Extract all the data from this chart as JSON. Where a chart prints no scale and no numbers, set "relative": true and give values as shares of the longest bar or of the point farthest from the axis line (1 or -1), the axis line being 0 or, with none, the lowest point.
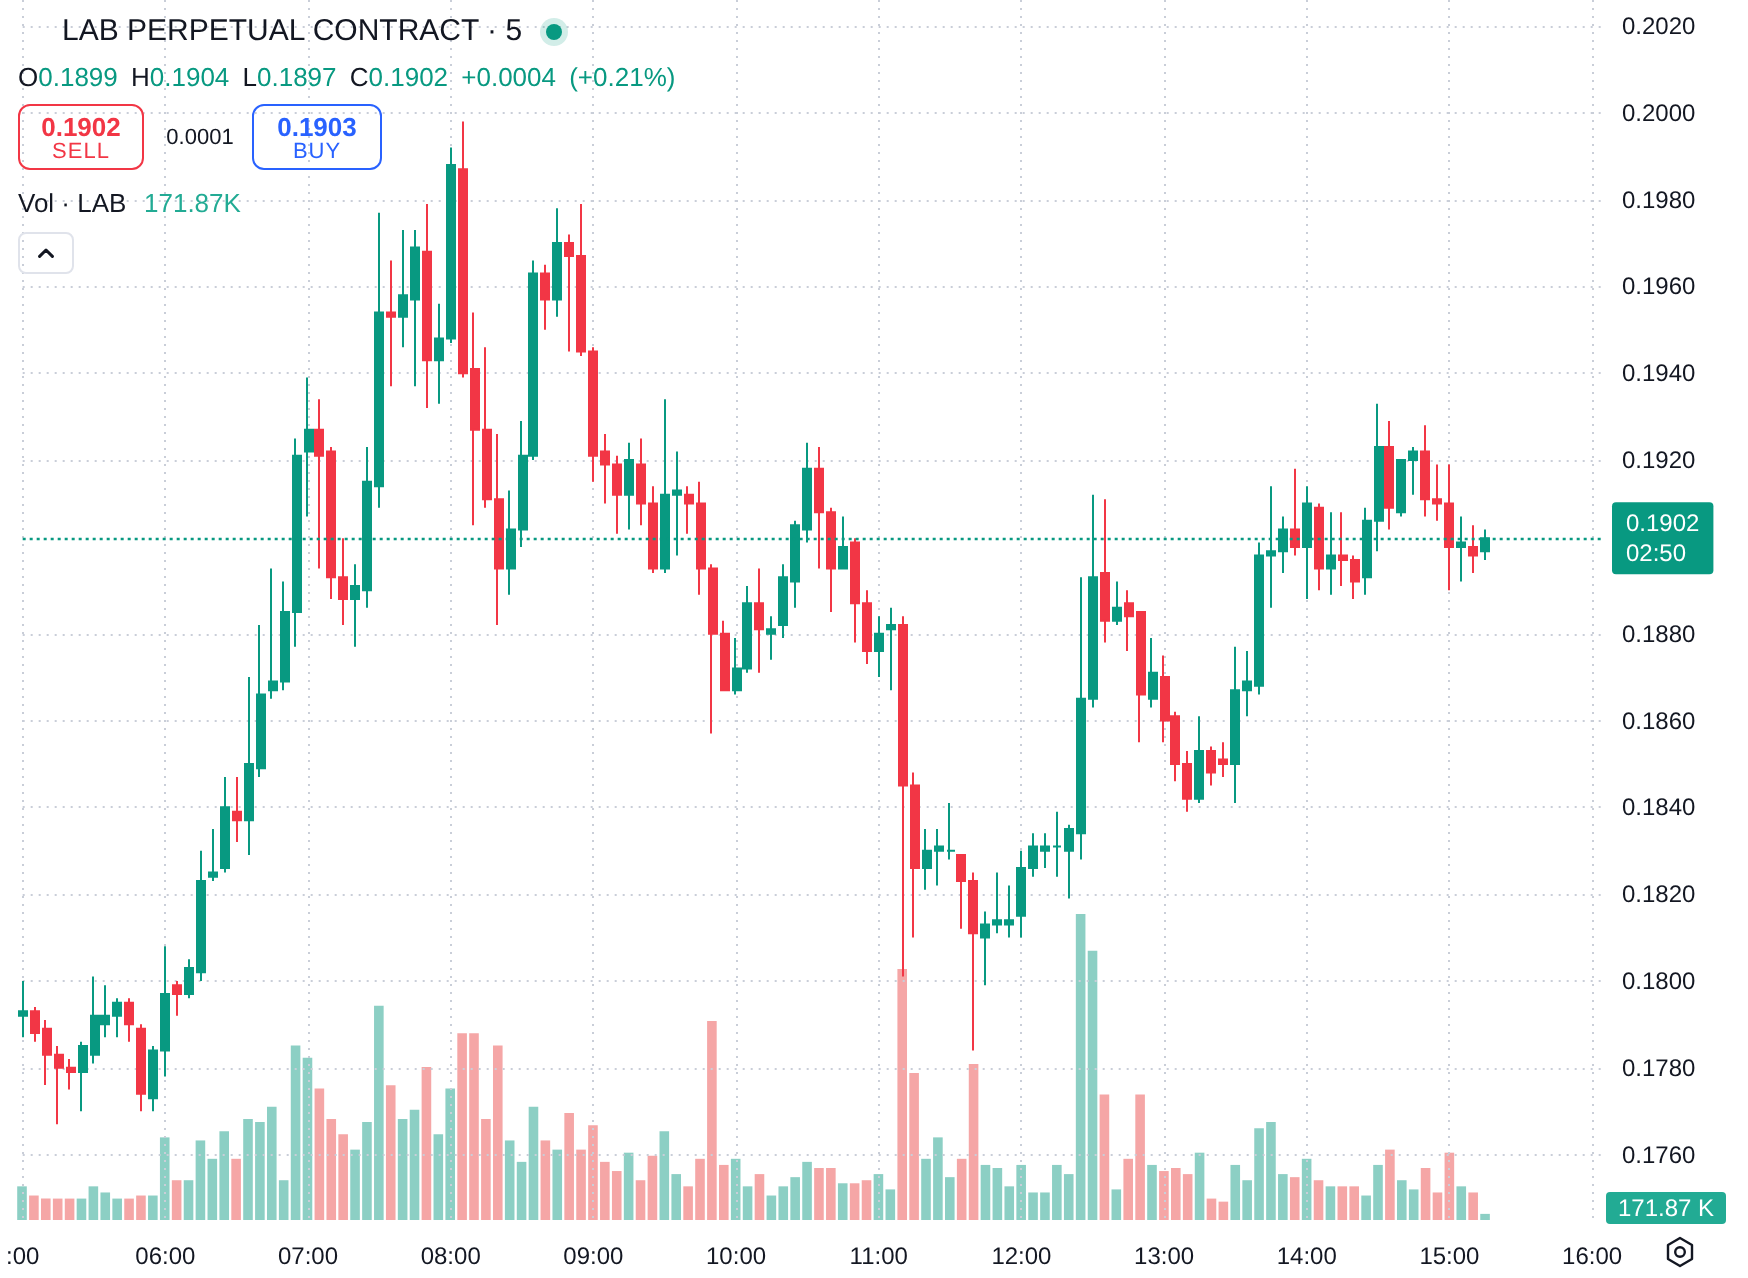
{
  "chart_data": [
    {
      "type": "candlestick",
      "title": "LAB PERPETUAL CONTRACT · 5",
      "categories": [
        ":00",
        null,
        null,
        null,
        null,
        null,
        null,
        null,
        null,
        null,
        null,
        null,
        "06:00",
        null,
        null,
        null,
        null,
        null,
        null,
        null,
        null,
        null,
        null,
        null,
        "07:00",
        null,
        null,
        null,
        null,
        null,
        null,
        null,
        null,
        null,
        null,
        null,
        "08:00",
        null,
        null,
        null,
        null,
        null,
        null,
        null,
        null,
        null,
        null,
        null,
        "09:00",
        null,
        null,
        null,
        null,
        null,
        null,
        null,
        null,
        null,
        null,
        null,
        "10:00",
        null,
        null,
        null,
        null,
        null,
        null,
        null,
        null,
        null,
        null,
        null,
        "11:00",
        null,
        null,
        null,
        null,
        null,
        null,
        null,
        null,
        null,
        null,
        null,
        "12:00",
        null,
        null,
        null,
        null,
        null,
        null,
        null,
        null,
        null,
        null,
        null,
        "13:00",
        null,
        null,
        null,
        null,
        null,
        null,
        null,
        null,
        null,
        null,
        null,
        "14:00",
        null,
        null,
        null,
        null,
        null,
        null,
        null,
        null,
        null,
        null,
        null,
        "15:00",
        null,
        null,
        null,
        null,
        null,
        null,
        null,
        null,
        null,
        null,
        null,
        "16:00",
        null
      ],
      "ohlc": [
        [
          0.1792,
          0.18,
          0.1787,
          0.1793
        ],
        [
          0.1793,
          0.1794,
          0.1786,
          0.1788
        ],
        [
          0.1789,
          0.1791,
          0.1776,
          0.1783
        ],
        [
          0.1783,
          0.1785,
          0.1767,
          0.178
        ],
        [
          0.178,
          0.1782,
          0.1775,
          0.1779
        ],
        [
          0.1779,
          0.1786,
          0.177,
          0.1785
        ],
        [
          0.1783,
          0.1801,
          0.1781,
          0.1792
        ],
        [
          0.179,
          0.1799,
          0.1787,
          0.1792
        ],
        [
          0.1792,
          0.1796,
          0.1787,
          0.1795
        ],
        [
          0.1795,
          0.1796,
          0.1786,
          0.179
        ],
        [
          0.1789,
          0.179,
          0.177,
          0.1774
        ],
        [
          0.1773,
          0.1785,
          0.177,
          0.1784
        ],
        [
          0.1784,
          0.1808,
          0.1778,
          0.1797
        ],
        [
          0.1799,
          0.18,
          0.1792,
          0.1797
        ],
        [
          0.1797,
          0.1805,
          0.1796,
          0.1803
        ],
        [
          0.1802,
          0.183,
          0.18,
          0.1823
        ],
        [
          0.1824,
          0.1835,
          0.1823,
          0.1825
        ],
        [
          0.1826,
          0.1847,
          0.1825,
          0.184
        ],
        [
          0.1839,
          0.1847,
          0.1832,
          0.1837
        ],
        [
          0.1837,
          0.187,
          0.1829,
          0.185
        ],
        [
          0.1849,
          0.1882,
          0.1847,
          0.1866
        ],
        [
          0.1867,
          0.1895,
          0.1865,
          0.1869
        ],
        [
          0.1869,
          0.1892,
          0.1867,
          0.1885
        ],
        [
          0.1885,
          0.1925,
          0.1877,
          0.1921
        ],
        [
          0.1922,
          0.1939,
          0.1907,
          0.1927
        ],
        [
          0.1927,
          0.1934,
          0.1895,
          0.1921
        ],
        [
          0.1922,
          0.1923,
          0.1888,
          0.1893
        ],
        [
          0.1893,
          0.1902,
          0.1882,
          0.1888
        ],
        [
          0.1888,
          0.1896,
          0.1877,
          0.1891
        ],
        [
          0.189,
          0.1923,
          0.1886,
          0.1915
        ],
        [
          0.1914,
          0.1977,
          0.1909,
          0.1954
        ],
        [
          0.1954,
          0.1966,
          0.1937,
          0.1953
        ],
        [
          0.1953,
          0.1973,
          0.1946,
          0.1958
        ],
        [
          0.1957,
          0.1973,
          0.1937,
          0.1969
        ],
        [
          0.1968,
          0.1979,
          0.1932,
          0.1943
        ],
        [
          0.1943,
          0.1956,
          0.1933,
          0.1948
        ],
        [
          0.1948,
          0.1992,
          0.1947,
          0.1988
        ],
        [
          0.1987,
          0.1998,
          0.1939,
          0.194
        ],
        [
          0.1941,
          0.1954,
          0.1905,
          0.1927
        ],
        [
          0.1927,
          0.1946,
          0.1909,
          0.1911
        ],
        [
          0.1911,
          0.1926,
          0.1882,
          0.1895
        ],
        [
          0.1895,
          0.1913,
          0.1889,
          0.1904
        ],
        [
          0.1904,
          0.1929,
          0.19,
          0.1921
        ],
        [
          0.1921,
          0.1966,
          0.192,
          0.1963
        ],
        [
          0.1963,
          0.1965,
          0.195,
          0.1957
        ],
        [
          0.1957,
          0.1978,
          0.1953,
          0.197
        ],
        [
          0.197,
          0.1972,
          0.1945,
          0.1967
        ],
        [
          0.1967,
          0.1979,
          0.1944,
          0.1945
        ],
        [
          0.1945,
          0.1946,
          0.1915,
          0.1921
        ],
        [
          0.1922,
          0.1926,
          0.191,
          0.1919
        ],
        [
          0.1919,
          0.1921,
          0.1903,
          0.1912
        ],
        [
          0.1912,
          0.1924,
          0.1904,
          0.192
        ],
        [
          0.1919,
          0.1925,
          0.1905,
          0.191
        ],
        [
          0.191,
          0.1914,
          0.1894,
          0.1895
        ],
        [
          0.1895,
          0.1934,
          0.1894,
          0.1912
        ],
        [
          0.1912,
          0.1922,
          0.1898,
          0.1913
        ],
        [
          0.1912,
          0.1914,
          0.1903,
          0.191
        ],
        [
          0.191,
          0.1915,
          0.1889,
          0.1895
        ],
        [
          0.1895,
          0.1896,
          0.1857,
          0.188
        ],
        [
          0.188,
          0.1883,
          0.1867,
          0.1867
        ],
        [
          0.1867,
          0.1879,
          0.1866,
          0.1872
        ],
        [
          0.1872,
          0.1891,
          0.1871,
          0.1887
        ],
        [
          0.1887,
          0.1895,
          0.1871,
          0.1881
        ],
        [
          0.188,
          0.1884,
          0.1874,
          0.1881
        ],
        [
          0.1882,
          0.1896,
          0.1879,
          0.1893
        ],
        [
          0.1892,
          0.1906,
          0.1886,
          0.1905
        ],
        [
          0.1904,
          0.1924,
          0.1901,
          0.1918
        ],
        [
          0.1918,
          0.1923,
          0.1895,
          0.1908
        ],
        [
          0.1908,
          0.1909,
          0.1885,
          0.1895
        ],
        [
          0.1895,
          0.1907,
          0.1895,
          0.19
        ],
        [
          0.1901,
          0.1902,
          0.1878,
          0.1887
        ],
        [
          0.1887,
          0.189,
          0.1873,
          0.1876
        ],
        [
          0.1876,
          0.1884,
          0.187,
          0.188
        ],
        [
          0.1881,
          0.1886,
          0.1867,
          0.1882
        ],
        [
          0.1882,
          0.1884,
          0.1801,
          0.1845
        ],
        [
          0.1845,
          0.1848,
          0.181,
          0.1826
        ],
        [
          0.1826,
          0.1835,
          0.1821,
          0.183
        ],
        [
          0.183,
          0.1835,
          0.1822,
          0.1831
        ],
        [
          0.183,
          0.1841,
          0.1828,
          0.183
        ],
        [
          0.1829,
          0.1829,
          0.1812,
          0.1823
        ],
        [
          0.1823,
          0.1825,
          0.1784,
          0.1811
        ],
        [
          0.181,
          0.1816,
          0.1799,
          0.1813
        ],
        [
          0.1813,
          0.1825,
          0.1811,
          0.1814
        ],
        [
          0.1813,
          0.1822,
          0.181,
          0.1814
        ],
        [
          0.1815,
          0.183,
          0.181,
          0.1826
        ],
        [
          0.1826,
          0.1834,
          0.1824,
          0.1831
        ],
        [
          0.183,
          0.1834,
          0.1826,
          0.1831
        ],
        [
          0.1831,
          0.1839,
          0.1824,
          0.1831
        ],
        [
          0.183,
          0.1836,
          0.1819,
          0.1835
        ],
        [
          0.1834,
          0.1893,
          0.1828,
          0.1865
        ],
        [
          0.1865,
          0.1912,
          0.1863,
          0.1893
        ],
        [
          0.1894,
          0.1911,
          0.1878,
          0.1883
        ],
        [
          0.1883,
          0.1892,
          0.1882,
          0.1886
        ],
        [
          0.1887,
          0.189,
          0.1876,
          0.1884
        ],
        [
          0.1885,
          0.1885,
          0.1855,
          0.1866
        ],
        [
          0.1865,
          0.1879,
          0.1863,
          0.1871
        ],
        [
          0.187,
          0.1875,
          0.1855,
          0.186
        ],
        [
          0.1861,
          0.1862,
          0.1846,
          0.185
        ],
        [
          0.185,
          0.1853,
          0.1839,
          0.1842
        ],
        [
          0.1842,
          0.1861,
          0.1841,
          0.1853
        ],
        [
          0.1853,
          0.1854,
          0.1845,
          0.1848
        ],
        [
          0.1851,
          0.1855,
          0.1847,
          0.185
        ],
        [
          0.185,
          0.1877,
          0.1841,
          0.1867
        ],
        [
          0.1867,
          0.1876,
          0.1861,
          0.1869
        ],
        [
          0.1868,
          0.1901,
          0.1866,
          0.1898
        ],
        [
          0.1898,
          0.1914,
          0.1886,
          0.1899
        ],
        [
          0.1899,
          0.1907,
          0.1894,
          0.1904
        ],
        [
          0.1904,
          0.1918,
          0.1898,
          0.19
        ],
        [
          0.19,
          0.1914,
          0.1888,
          0.191
        ],
        [
          0.1909,
          0.191,
          0.189,
          0.1895
        ],
        [
          0.1895,
          0.1908,
          0.1889,
          0.1898
        ],
        [
          0.1898,
          0.1908,
          0.1891,
          0.1897
        ],
        [
          0.1897,
          0.1898,
          0.1888,
          0.1892
        ],
        [
          0.1893,
          0.1909,
          0.1889,
          0.1906
        ],
        [
          0.1906,
          0.1933,
          0.1899,
          0.1923
        ],
        [
          0.1923,
          0.1929,
          0.1904,
          0.1909
        ],
        [
          0.1908,
          0.192,
          0.1907,
          0.192
        ],
        [
          0.192,
          0.1923,
          0.1912,
          0.1922
        ],
        [
          0.1922,
          0.1928,
          0.1907,
          0.1911
        ],
        [
          0.1911,
          0.1919,
          0.1906,
          0.191
        ],
        [
          0.191,
          0.1919,
          0.189,
          0.19
        ],
        [
          0.19,
          0.1907,
          0.1892,
          0.1901
        ],
        [
          0.19,
          0.1905,
          0.1894,
          0.1898
        ],
        [
          0.1899,
          0.1904,
          0.1897,
          0.1902
        ],
        null,
        null,
        null,
        null,
        null,
        null,
        null,
        null,
        null,
        null
      ],
      "colors": [
        "#089981",
        "#f23645",
        "#f23645",
        "#f23645",
        "#f23645",
        "#089981",
        "#089981",
        "#089981",
        "#089981",
        "#f23645",
        "#f23645",
        "#089981",
        "#089981",
        "#f23645",
        "#089981",
        "#089981",
        "#089981",
        "#089981",
        "#f23645",
        "#089981",
        "#089981",
        "#089981",
        "#089981",
        "#089981",
        "#089981",
        "#f23645",
        "#f23645",
        "#f23645",
        "#089981",
        "#089981",
        "#089981",
        "#f23645",
        "#089981",
        "#089981",
        "#f23645",
        "#089981",
        "#089981",
        "#f23645",
        "#f23645",
        "#f23645",
        "#f23645",
        "#089981",
        "#089981",
        "#089981",
        "#f23645",
        "#089981",
        "#f23645",
        "#f23645",
        "#f23645",
        "#f23645",
        "#f23645",
        "#089981",
        "#f23645",
        "#f23645",
        "#089981",
        "#089981",
        "#f23645",
        "#f23645",
        "#f23645",
        "#f23645",
        "#089981",
        "#089981",
        "#f23645",
        "#089981",
        "#089981",
        "#089981",
        "#089981",
        "#f23645",
        "#f23645",
        "#089981",
        "#f23645",
        "#f23645",
        "#089981",
        "#089981",
        "#f23645",
        "#f23645",
        "#089981",
        "#089981",
        "#089981",
        "#f23645",
        "#f23645",
        "#089981",
        "#089981",
        "#089981",
        "#089981",
        "#089981",
        "#089981",
        "#089981",
        "#089981",
        "#089981",
        "#089981",
        "#f23645",
        "#089981",
        "#f23645",
        "#f23645",
        "#089981",
        "#f23645",
        "#f23645",
        "#f23645",
        "#089981",
        "#f23645",
        "#f23645",
        "#089981",
        "#089981",
        "#089981",
        "#089981",
        "#089981",
        "#f23645",
        "#089981",
        "#f23645",
        "#089981",
        "#f23645",
        "#f23645",
        "#089981",
        "#089981",
        "#f23645",
        "#089981",
        "#089981",
        "#f23645",
        "#f23645",
        "#f23645",
        "#089981",
        "#f23645",
        "#089981",
        null,
        null,
        null,
        null,
        null,
        null,
        null,
        null,
        null,
        null
      ],
      "ylim": [
        0.1744,
        0.2026
      ],
      "yticks": [
        {
          "value": 0.176,
          "label": "0.1760"
        },
        {
          "value": 0.178,
          "label": "0.1780"
        },
        {
          "value": 0.18,
          "label": "0.1800"
        },
        {
          "value": 0.182,
          "label": "0.1820"
        },
        {
          "value": 0.184,
          "label": "0.1840"
        },
        {
          "value": 0.186,
          "label": "0.1860"
        },
        {
          "value": 0.188,
          "label": "0.1880"
        },
        {
          "value": 0.192,
          "label": "0.1920"
        },
        {
          "value": 0.194,
          "label": "0.1940"
        },
        {
          "value": 0.196,
          "label": "0.1960"
        },
        {
          "value": 0.198,
          "label": "0.1980"
        },
        {
          "value": 0.2,
          "label": "0.2000"
        },
        {
          "value": 0.202,
          "label": "0.2020"
        }
      ],
      "grid": true,
      "ref_lines": [
        {
          "axis": "y",
          "value": 0.1902,
          "label": "0.1902\n02:50",
          "color": "#089981",
          "line_style": "dotted"
        }
      ],
      "annotations": [
        "O0.1899 H0.1904 L0.1897 C0.1902 +0.0004 (+0.21%)",
        "0.1902",
        "SELL",
        "0.0001",
        "0.1903",
        "BUY"
      ]
    },
    {
      "type": "bar",
      "relative": true,
      "categories": [
        null,
        null,
        null,
        null,
        null,
        null,
        null,
        null,
        null,
        null,
        null,
        null,
        null,
        null,
        null,
        null,
        null,
        null,
        null,
        null,
        null,
        null,
        null,
        null,
        null,
        null,
        null,
        null,
        null,
        null,
        null,
        null,
        null,
        null,
        null,
        null,
        null,
        null,
        null,
        null,
        null,
        null,
        null,
        null,
        null,
        null,
        null,
        null,
        null,
        null,
        null,
        null,
        null,
        null,
        null,
        null,
        null,
        null,
        null,
        null,
        null,
        null,
        null,
        null,
        null,
        null,
        null,
        null,
        null,
        null,
        null,
        null,
        null,
        null,
        null,
        null,
        null,
        null,
        null,
        null,
        null,
        null,
        null,
        null,
        null,
        null,
        null,
        null,
        null,
        null,
        null,
        null,
        null,
        null,
        null,
        null,
        null,
        null,
        null,
        null,
        null,
        null,
        null,
        null,
        null,
        null,
        null,
        null,
        null,
        null,
        null,
        null,
        null,
        null,
        null,
        null,
        null,
        null,
        null,
        null,
        null,
        null,
        null,
        null,
        null,
        null,
        null,
        null,
        null,
        null,
        null,
        null,
        null,
        null
      ],
      "values": [
        0.11,
        0.08,
        0.07,
        0.07,
        0.07,
        0.07,
        0.11,
        0.09,
        0.07,
        0.07,
        0.08,
        0.08,
        0.27,
        0.13,
        0.13,
        0.26,
        0.2,
        0.29,
        0.2,
        0.33,
        0.32,
        0.37,
        0.13,
        0.57,
        0.53,
        0.43,
        0.33,
        0.28,
        0.23,
        0.32,
        0.7,
        0.44,
        0.33,
        0.36,
        0.5,
        0.28,
        0.43,
        0.61,
        0.61,
        0.33,
        0.57,
        0.26,
        0.19,
        0.37,
        0.26,
        0.23,
        0.35,
        0.23,
        0.31,
        0.19,
        0.16,
        0.22,
        0.13,
        0.21,
        0.29,
        0.15,
        0.11,
        0.2,
        0.65,
        0.18,
        0.2,
        0.11,
        0.15,
        0.08,
        0.11,
        0.14,
        0.19,
        0.17,
        0.17,
        0.12,
        0.12,
        0.13,
        0.15,
        0.1,
        0.82,
        0.48,
        0.2,
        0.27,
        0.14,
        0.2,
        0.51,
        0.18,
        0.17,
        0.11,
        0.18,
        0.09,
        0.09,
        0.18,
        0.15,
        1,
        0.88,
        0.41,
        0.1,
        0.2,
        0.41,
        0.18,
        0.16,
        0.17,
        0.15,
        0.22,
        0.07,
        0.06,
        0.18,
        0.13,
        0.3,
        0.32,
        0.15,
        0.14,
        0.2,
        0.13,
        0.11,
        0.11,
        0.11,
        0.08,
        0.18,
        0.23,
        0.13,
        0.1,
        0.17,
        0.09,
        0.22,
        0.11,
        0.09,
        0.02,
        null,
        null,
        null,
        null,
        null,
        null,
        null,
        null,
        null,
        null
      ],
      "colors": [
        "#8ccfc4",
        "#f5a6a6",
        "#f5a6a6",
        "#f5a6a6",
        "#f5a6a6",
        "#8ccfc4",
        "#8ccfc4",
        "#8ccfc4",
        "#8ccfc4",
        "#f5a6a6",
        "#f5a6a6",
        "#8ccfc4",
        "#8ccfc4",
        "#f5a6a6",
        "#8ccfc4",
        "#8ccfc4",
        "#8ccfc4",
        "#8ccfc4",
        "#f5a6a6",
        "#8ccfc4",
        "#8ccfc4",
        "#8ccfc4",
        "#8ccfc4",
        "#8ccfc4",
        "#8ccfc4",
        "#f5a6a6",
        "#f5a6a6",
        "#f5a6a6",
        "#8ccfc4",
        "#8ccfc4",
        "#8ccfc4",
        "#f5a6a6",
        "#8ccfc4",
        "#8ccfc4",
        "#f5a6a6",
        "#8ccfc4",
        "#8ccfc4",
        "#f5a6a6",
        "#f5a6a6",
        "#f5a6a6",
        "#f5a6a6",
        "#8ccfc4",
        "#8ccfc4",
        "#8ccfc4",
        "#f5a6a6",
        "#8ccfc4",
        "#f5a6a6",
        "#f5a6a6",
        "#f5a6a6",
        "#f5a6a6",
        "#f5a6a6",
        "#8ccfc4",
        "#f5a6a6",
        "#f5a6a6",
        "#8ccfc4",
        "#8ccfc4",
        "#f5a6a6",
        "#f5a6a6",
        "#f5a6a6",
        "#f5a6a6",
        "#8ccfc4",
        "#8ccfc4",
        "#f5a6a6",
        "#8ccfc4",
        "#8ccfc4",
        "#8ccfc4",
        "#8ccfc4",
        "#f5a6a6",
        "#f5a6a6",
        "#8ccfc4",
        "#f5a6a6",
        "#f5a6a6",
        "#8ccfc4",
        "#8ccfc4",
        "#f5a6a6",
        "#f5a6a6",
        "#8ccfc4",
        "#8ccfc4",
        "#8ccfc4",
        "#f5a6a6",
        "#f5a6a6",
        "#8ccfc4",
        "#8ccfc4",
        "#8ccfc4",
        "#8ccfc4",
        "#8ccfc4",
        "#8ccfc4",
        "#8ccfc4",
        "#8ccfc4",
        "#8ccfc4",
        "#8ccfc4",
        "#f5a6a6",
        "#8ccfc4",
        "#f5a6a6",
        "#f5a6a6",
        "#8ccfc4",
        "#f5a6a6",
        "#f5a6a6",
        "#f5a6a6",
        "#8ccfc4",
        "#f5a6a6",
        "#f5a6a6",
        "#8ccfc4",
        "#8ccfc4",
        "#8ccfc4",
        "#8ccfc4",
        "#8ccfc4",
        "#f5a6a6",
        "#8ccfc4",
        "#f5a6a6",
        "#8ccfc4",
        "#f5a6a6",
        "#f5a6a6",
        "#8ccfc4",
        "#8ccfc4",
        "#f5a6a6",
        "#8ccfc4",
        "#8ccfc4",
        "#f5a6a6",
        "#f5a6a6",
        "#f5a6a6",
        "#8ccfc4",
        "#f5a6a6",
        "#8ccfc4",
        null,
        null,
        null,
        null,
        null,
        null,
        null,
        null,
        null,
        null
      ],
      "annotations": [
        "Vol · LAB",
        "171.87K",
        "171.87 K"
      ]
    }
  ]
}
